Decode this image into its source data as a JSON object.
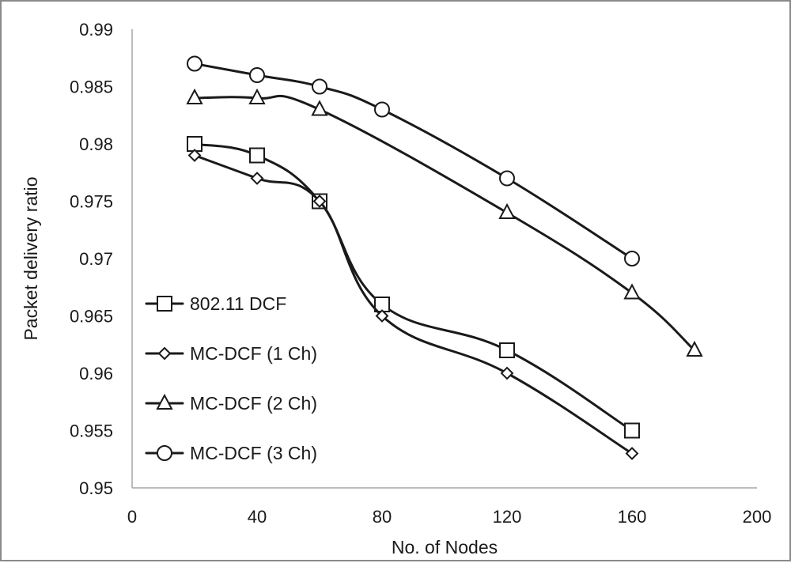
{
  "chart_data": {
    "type": "line",
    "title": "",
    "xlabel": "No. of Nodes",
    "ylabel": "Packet delivery ratio",
    "xlim": [
      0,
      200
    ],
    "ylim": [
      0.95,
      0.99
    ],
    "x_ticks": [
      "0",
      "40",
      "80",
      "120",
      "160",
      "200"
    ],
    "y_ticks": [
      "0.95",
      "0.955",
      "0.96",
      "0.965",
      "0.97",
      "0.975",
      "0.98",
      "0.985",
      "0.99"
    ],
    "grid": false,
    "legend_position": "left-bottom",
    "series": [
      {
        "name": "802.11 DCF",
        "marker": "square",
        "x": [
          20,
          40,
          60,
          80,
          120,
          160
        ],
        "values": [
          0.98,
          0.979,
          0.975,
          0.966,
          0.962,
          0.955
        ]
      },
      {
        "name": "MC-DCF (1 Ch)",
        "marker": "diamond",
        "x": [
          20,
          40,
          60,
          80,
          120,
          160
        ],
        "values": [
          0.979,
          0.977,
          0.975,
          0.965,
          0.96,
          0.953
        ]
      },
      {
        "name": "MC-DCF (2 Ch)",
        "marker": "triangle",
        "x": [
          20,
          40,
          60,
          120,
          160,
          180
        ],
        "values": [
          0.984,
          0.984,
          0.983,
          0.974,
          0.967,
          0.962
        ]
      },
      {
        "name": "MC-DCF (3 Ch)",
        "marker": "circle",
        "x": [
          20,
          40,
          60,
          80,
          120,
          160
        ],
        "values": [
          0.987,
          0.986,
          0.985,
          0.983,
          0.977,
          0.97
        ]
      }
    ]
  }
}
